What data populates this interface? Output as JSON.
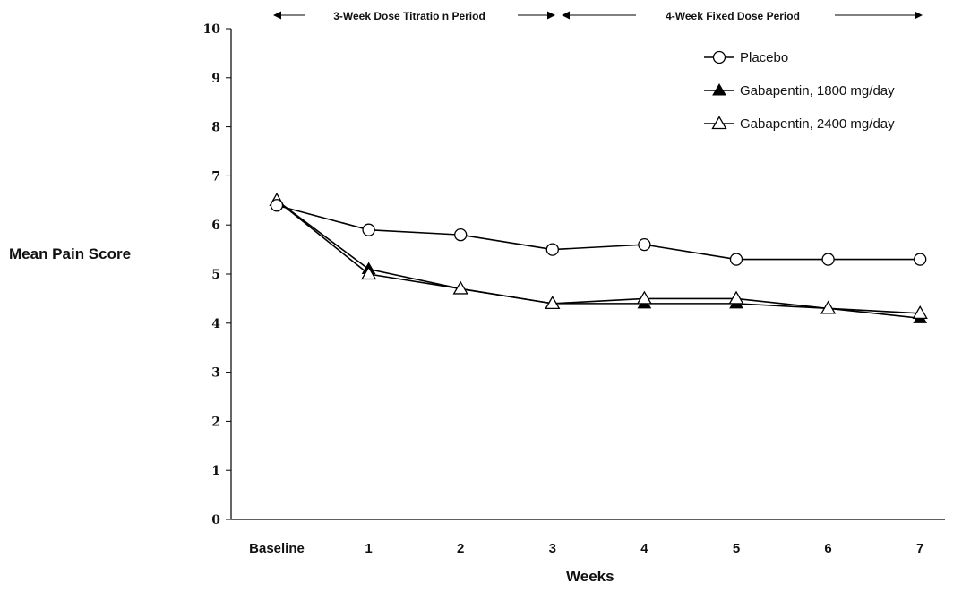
{
  "chart_data": {
    "type": "line",
    "title": "",
    "xlabel": "Weeks",
    "ylabel": "Mean Pain Score",
    "categories": [
      "Baseline",
      "1",
      "2",
      "3",
      "4",
      "5",
      "6",
      "7"
    ],
    "ylim": [
      0,
      10
    ],
    "yticks": [
      "0",
      "1",
      "2",
      "3",
      "4",
      "5",
      "6",
      "7",
      "8",
      "9",
      "10"
    ],
    "periods": [
      {
        "label": "3-Week Dose Titratio  n Period",
        "from": "Baseline",
        "to": "3"
      },
      {
        "label": "4-Week Fixed Dose Period",
        "from": "3",
        "to": "7"
      }
    ],
    "legend_position": "top-right",
    "grid": false,
    "series": [
      {
        "name": "Placebo",
        "marker": "open-circle",
        "values": [
          6.4,
          5.9,
          5.8,
          5.5,
          5.6,
          5.3,
          5.3,
          5.3
        ]
      },
      {
        "name": "Gabapentin, 1800 mg/day",
        "marker": "filled-triangle",
        "values": [
          6.5,
          5.1,
          4.7,
          4.4,
          4.4,
          4.4,
          4.3,
          4.1
        ]
      },
      {
        "name": "Gabapentin, 2400 mg/day",
        "marker": "open-triangle",
        "values": [
          6.5,
          5.0,
          4.7,
          4.4,
          4.5,
          4.5,
          4.3,
          4.2
        ]
      }
    ]
  }
}
